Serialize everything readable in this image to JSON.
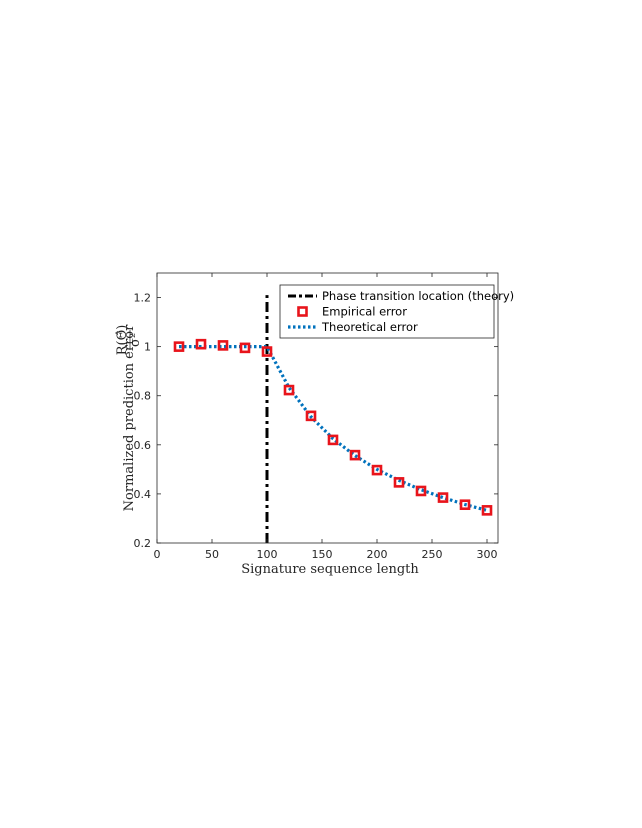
{
  "chart_data": {
    "type": "line",
    "xlabel": "Signature sequence length",
    "ylabel_text": "Normalized prediction error",
    "ylabel_fraction": {
      "numerator": "R(Θ̂)",
      "denominator": "σ²"
    },
    "xlim": [
      0,
      310
    ],
    "ylim": [
      0.2,
      1.3
    ],
    "xticks": [
      "0",
      "50",
      "100",
      "150",
      "200",
      "250",
      "300"
    ],
    "yticks": [
      "0.2",
      "0.4",
      "0.6",
      "0.8",
      "1",
      "1.2"
    ],
    "grid": false,
    "legend_position": "top-right",
    "phase_transition": {
      "name": "Phase transition location (theory)",
      "x": 100,
      "y_range": [
        0.2,
        1.21
      ],
      "color": "#000000"
    },
    "series": [
      {
        "name": "Empirical error",
        "style": "markers",
        "color": "#e8141b",
        "x": [
          20,
          40,
          60,
          80,
          100,
          120,
          140,
          160,
          180,
          200,
          220,
          240,
          260,
          280,
          300
        ],
        "y": [
          1.0,
          1.01,
          1.005,
          0.995,
          0.98,
          0.823,
          0.718,
          0.62,
          0.558,
          0.497,
          0.447,
          0.412,
          0.385,
          0.356,
          0.333
        ]
      },
      {
        "name": "Theoretical error",
        "style": "dotted-line",
        "color": "#0072bd",
        "x": [
          20,
          40,
          60,
          80,
          100,
          120,
          140,
          160,
          180,
          200,
          220,
          240,
          260,
          280,
          300
        ],
        "y": [
          1.0,
          1.0,
          1.0,
          1.0,
          1.0,
          0.833,
          0.714,
          0.625,
          0.556,
          0.5,
          0.455,
          0.417,
          0.385,
          0.357,
          0.333
        ]
      }
    ]
  }
}
